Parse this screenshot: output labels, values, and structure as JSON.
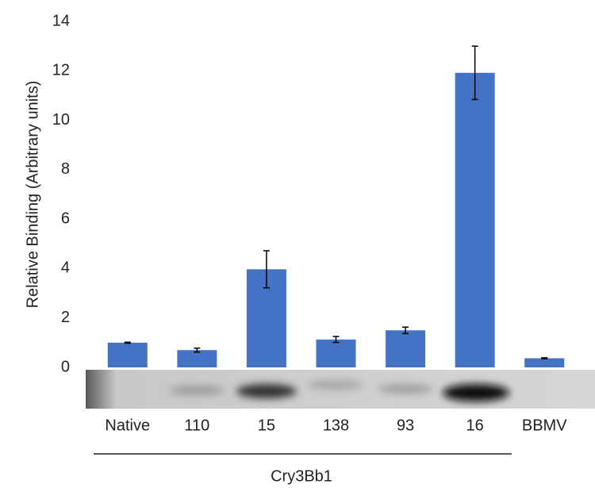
{
  "chart_data": {
    "type": "bar",
    "ylabel": "Relative Binding (Arbitrary units)",
    "xlabel": "Cry3Bb1",
    "categories": [
      "Native",
      "110",
      "15",
      "138",
      "93",
      "16",
      "BBMV"
    ],
    "values": [
      1.0,
      0.7,
      3.97,
      1.13,
      1.5,
      11.92,
      0.37
    ],
    "errors": [
      0.02,
      0.08,
      0.75,
      0.12,
      0.13,
      1.08,
      0.02
    ],
    "color": "#4472c4",
    "ylim": [
      0,
      14
    ],
    "yticks": [
      0,
      2,
      4,
      6,
      8,
      10,
      12,
      14
    ]
  }
}
